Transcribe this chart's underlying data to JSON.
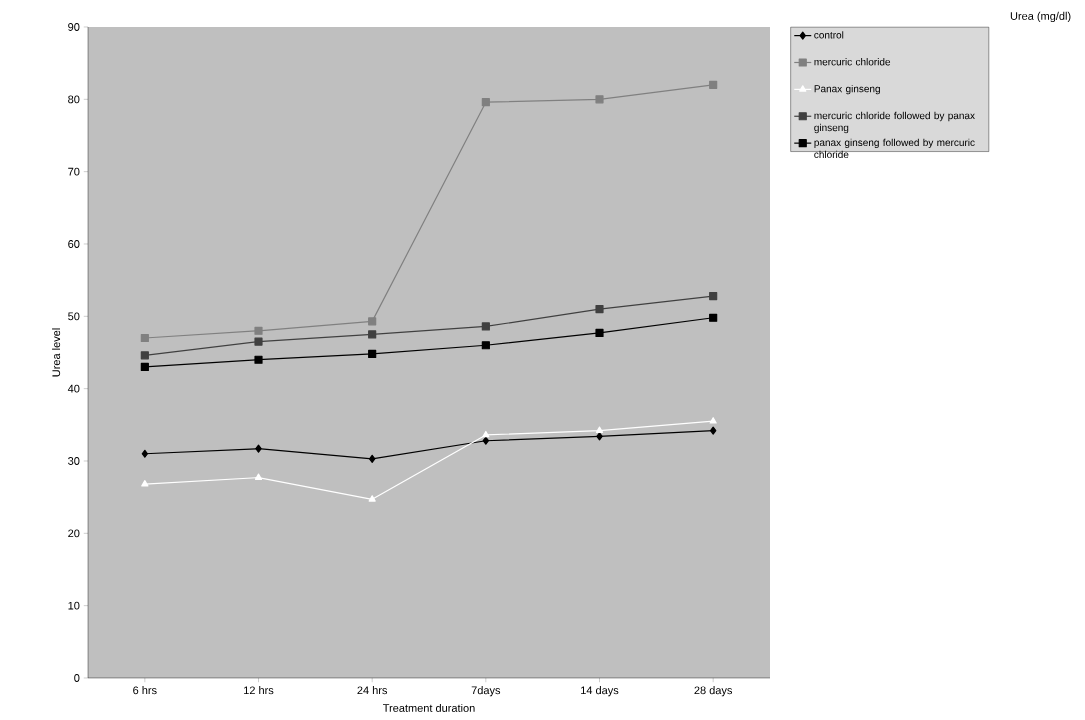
{
  "chart_data": {
    "type": "line",
    "xlabel": "Treatment duration",
    "ylabel": "Urea level",
    "annotations": [
      "Urea (mg/dl)"
    ],
    "categories": [
      "6 hrs",
      "12 hrs",
      "24 hrs",
      "7days",
      "14 days",
      "28 days"
    ],
    "series": [
      {
        "name": "control",
        "color": "#000000",
        "marker": "diamond",
        "values": [
          31,
          31.7,
          30.3,
          32.8,
          33.4,
          34.2
        ]
      },
      {
        "name": "mercuric chloride",
        "color": "#808080",
        "marker": "square",
        "values": [
          47,
          48,
          49.3,
          79.6,
          80,
          82
        ]
      },
      {
        "name": "Panax ginseng",
        "color": "#ffffff",
        "marker": "triangle",
        "values": [
          26.8,
          27.7,
          24.7,
          33.6,
          34.2,
          35.5
        ]
      },
      {
        "name": "mercuric chloride followed by panax ginseng",
        "color": "#404040",
        "marker": "square",
        "values": [
          44.6,
          46.5,
          47.5,
          48.6,
          51,
          52.8
        ]
      },
      {
        "name": "panax ginseng followed by mercuric chloride",
        "color": "#000000",
        "marker": "square",
        "values": [
          43,
          44,
          44.8,
          46,
          47.7,
          49.8
        ]
      }
    ],
    "ylim": [
      0,
      90
    ],
    "yticks": [
      0,
      10,
      20,
      30,
      40,
      50,
      60,
      70,
      80,
      90
    ],
    "grid": false,
    "legend": "right",
    "line_style": "solid"
  }
}
